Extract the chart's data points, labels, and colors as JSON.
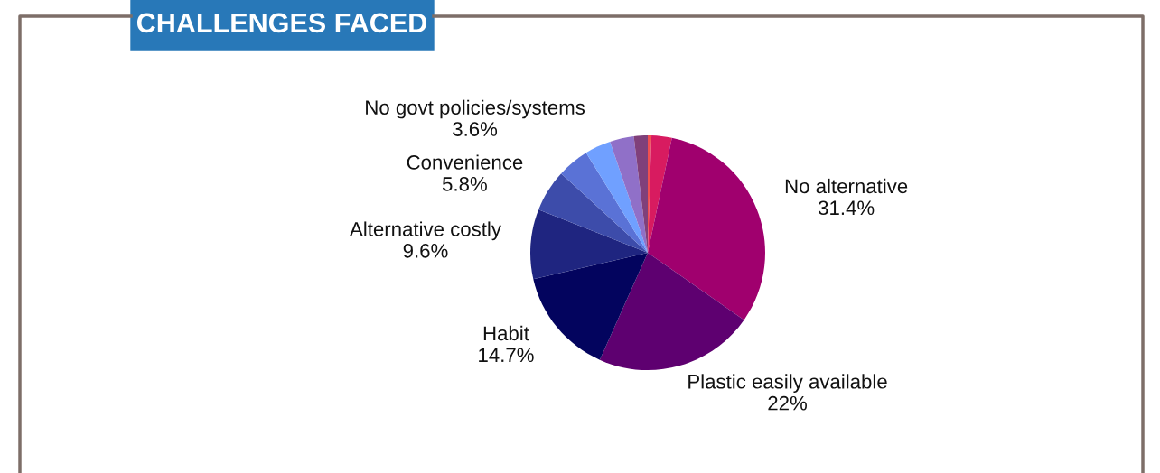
{
  "chart_data": {
    "type": "pie",
    "title": "CHALLENGES FACED",
    "categories": [
      null,
      null,
      "No alternative",
      "Plastic easily available",
      "Habit",
      "Alternative costly",
      "Convenience",
      null,
      "No govt policies/systems",
      null,
      null
    ],
    "values": [
      0.5,
      2.8,
      31.4,
      22,
      14.7,
      9.6,
      5.8,
      4.4,
      3.6,
      3.3,
      1.9
    ],
    "value_labels": [
      null,
      null,
      "31.4%",
      "22%",
      "14.7%",
      "9.6%",
      "5.8%",
      null,
      "3.6%",
      null,
      null
    ],
    "colors": [
      "#f05050",
      "#d81b60",
      "#a0006e",
      "#5e0070",
      "#03045e",
      "#1f2580",
      "#3d4caa",
      "#5a72d6",
      "#70a0ff",
      "#9070c8",
      "#80407a"
    ],
    "legend": false
  }
}
